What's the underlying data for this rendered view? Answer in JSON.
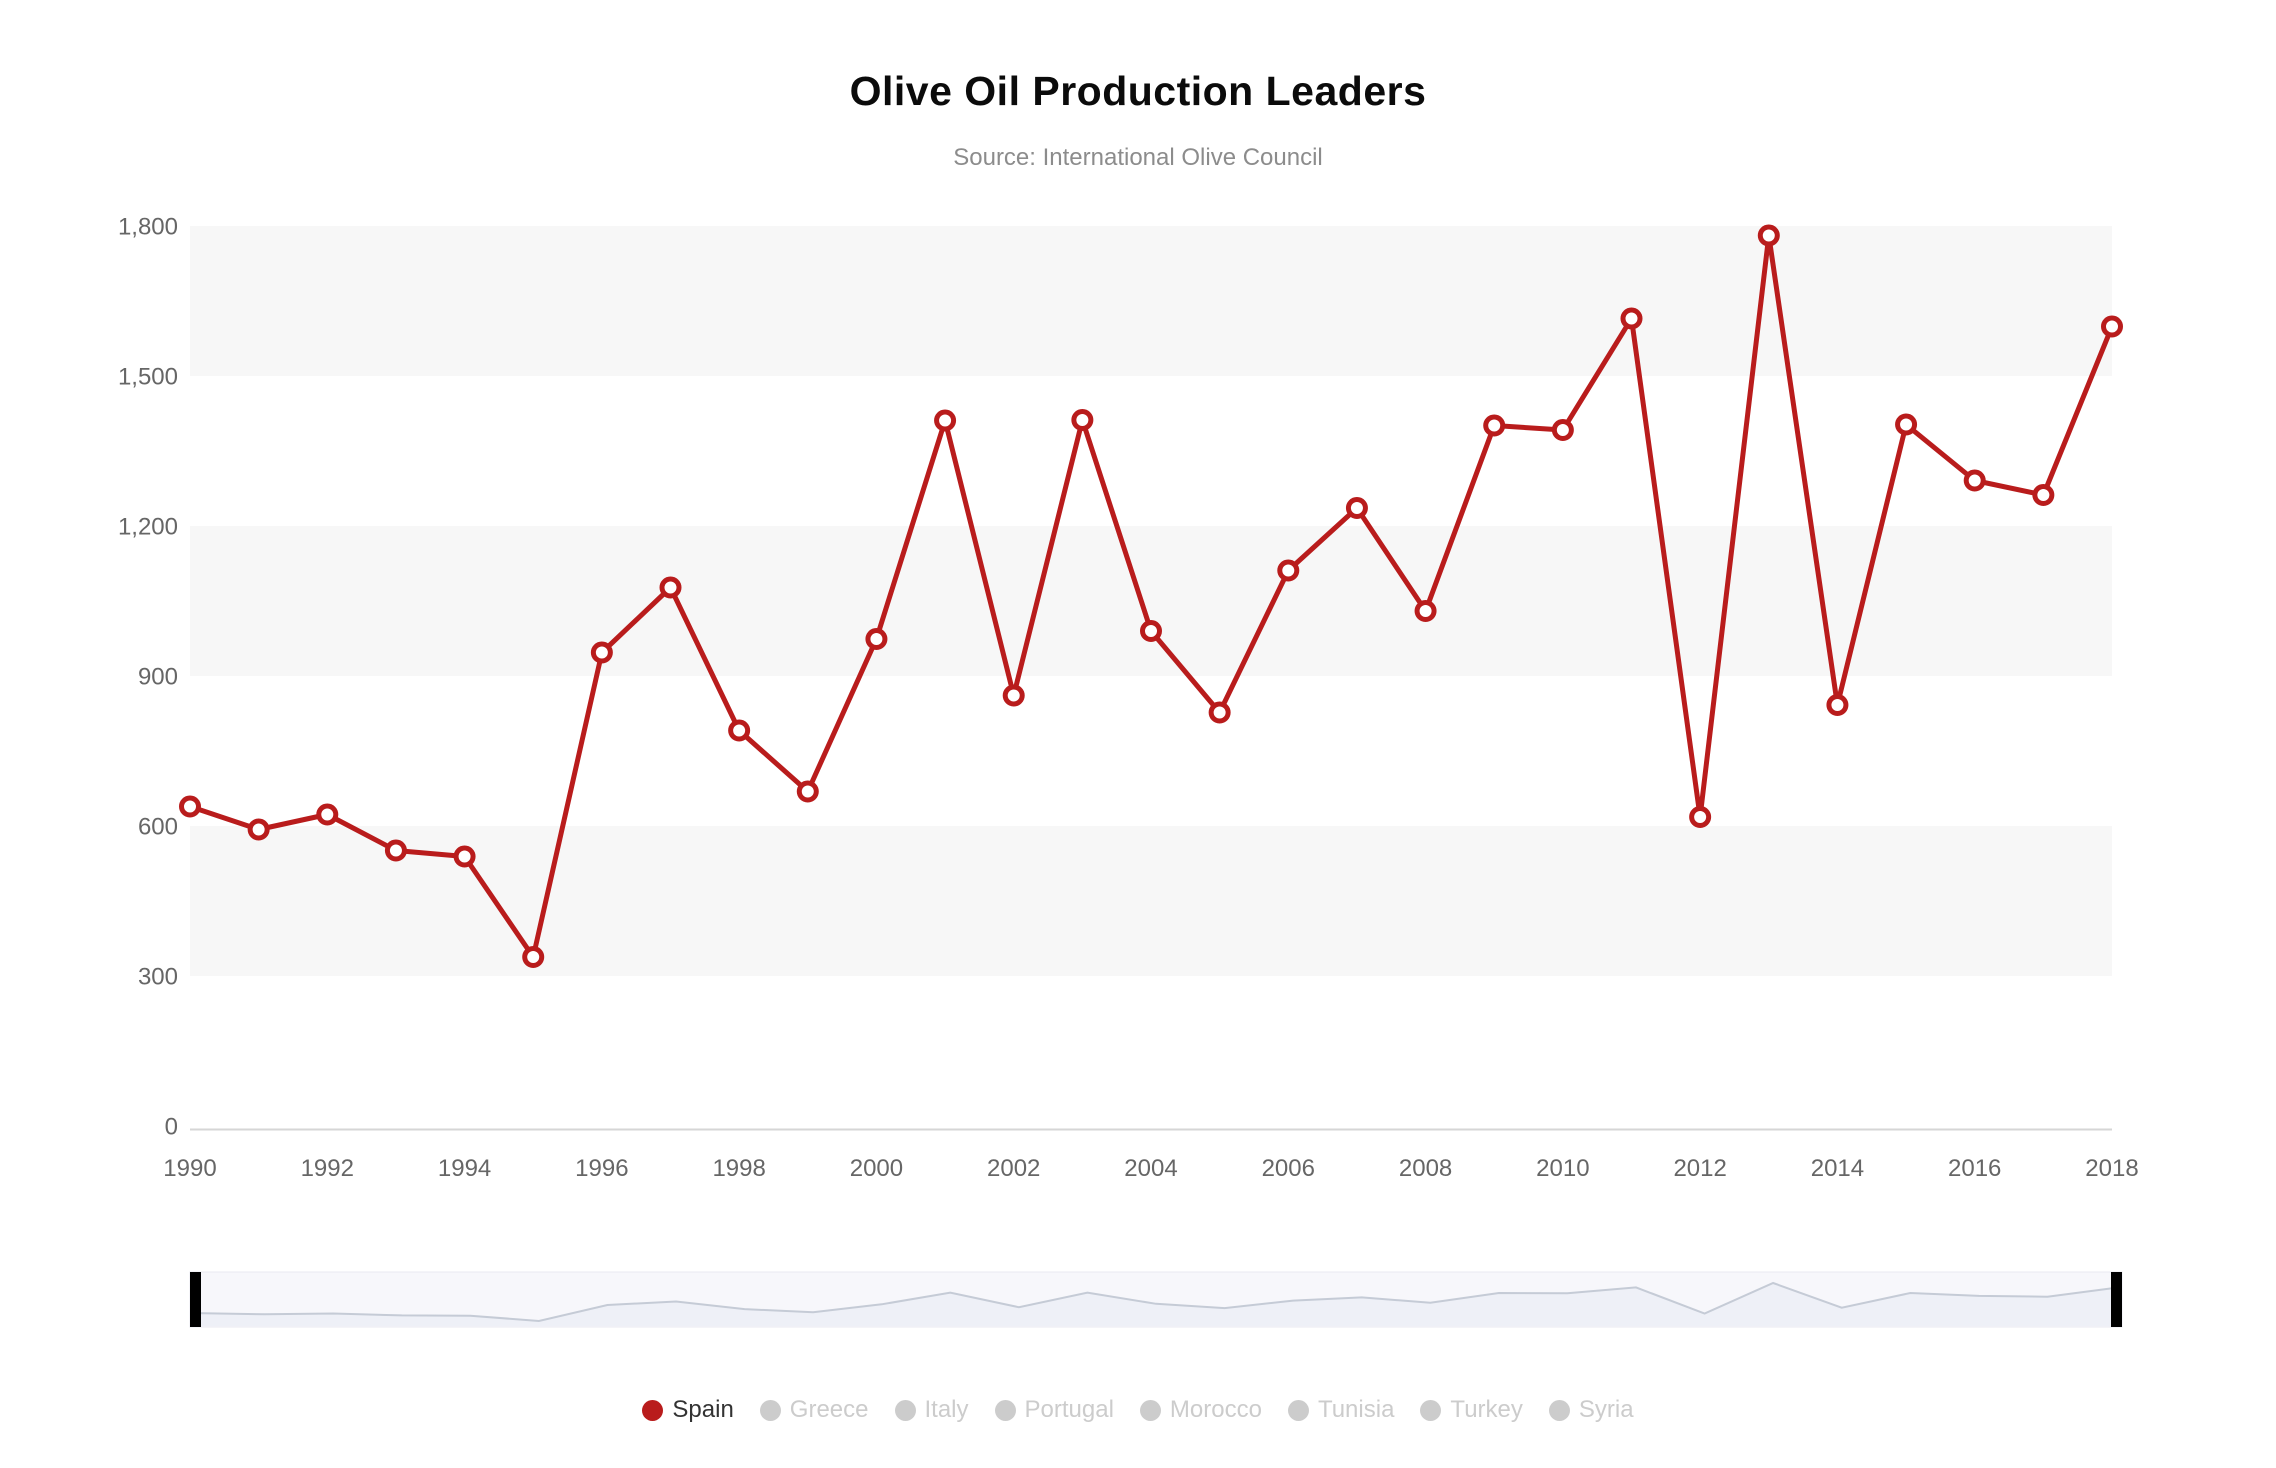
{
  "header": {
    "title": "Olive Oil Production Leaders",
    "subtitle": "Source: International Olive Council"
  },
  "chart_data": {
    "type": "line",
    "title": "Olive Oil Production Leaders",
    "subtitle": "Source: International Olive Council",
    "x": [
      1990,
      1991,
      1992,
      1993,
      1994,
      1995,
      1996,
      1997,
      1998,
      1999,
      2000,
      2001,
      2002,
      2003,
      2004,
      2005,
      2006,
      2007,
      2008,
      2009,
      2010,
      2011,
      2012,
      2013,
      2014,
      2015,
      2016,
      2017,
      2018
    ],
    "series": [
      {
        "name": "Spain",
        "color": "#b91c1c",
        "values": [
          639,
          593,
          623,
          551,
          539,
          338,
          947,
          1077,
          791,
          669,
          974,
          1411,
          861,
          1412,
          990,
          827,
          1111,
          1236,
          1030,
          1401,
          1392,
          1615,
          618,
          1781,
          842,
          1403,
          1291,
          1262,
          1599
        ]
      }
    ],
    "xlabel": "",
    "ylabel": "",
    "ylim": [
      0,
      1800
    ],
    "yticks": {
      "values": [
        0,
        300,
        600,
        900,
        1200,
        1500,
        1800
      ],
      "labels": [
        "0",
        "300",
        "600",
        "900",
        "1,200",
        "1,500",
        "1,800"
      ]
    },
    "xticks": {
      "values": [
        1990,
        1992,
        1994,
        1996,
        1998,
        2000,
        2002,
        2004,
        2006,
        2008,
        2010,
        2012,
        2014,
        2016,
        2018
      ],
      "labels": [
        "1990",
        "1992",
        "1994",
        "1996",
        "1998",
        "2000",
        "2002",
        "2004",
        "2006",
        "2008",
        "2010",
        "2012",
        "2014",
        "2016",
        "2018"
      ]
    },
    "grid": "alternating-horizontal-bands",
    "band_color": "#f7f7f7",
    "axis_line_color": "#d6d6d6",
    "axis_label_color": "#666666",
    "legend_position": "bottom",
    "marker": "open-circle"
  },
  "legend": {
    "items": [
      {
        "label": "Spain",
        "color": "#b91c1c",
        "enabled": true
      },
      {
        "label": "Greece",
        "color": "#cccccc",
        "enabled": false
      },
      {
        "label": "Italy",
        "color": "#cccccc",
        "enabled": false
      },
      {
        "label": "Portugal",
        "color": "#cccccc",
        "enabled": false
      },
      {
        "label": "Morocco",
        "color": "#cccccc",
        "enabled": false
      },
      {
        "label": "Tunisia",
        "color": "#cccccc",
        "enabled": false
      },
      {
        "label": "Turkey",
        "color": "#cccccc",
        "enabled": false
      },
      {
        "label": "Syria",
        "color": "#cccccc",
        "enabled": false
      }
    ],
    "disabled_color": "#cccccc",
    "enabled_text_color": "#333333",
    "disabled_text_color": "#cccccc"
  },
  "navigator": {
    "strip_color": "#f7f7fb",
    "strip_border_color": "#e8e8f0",
    "line_color": "#c5cbd6",
    "area_color": "#eef0f7",
    "handle_color": "#000000"
  }
}
